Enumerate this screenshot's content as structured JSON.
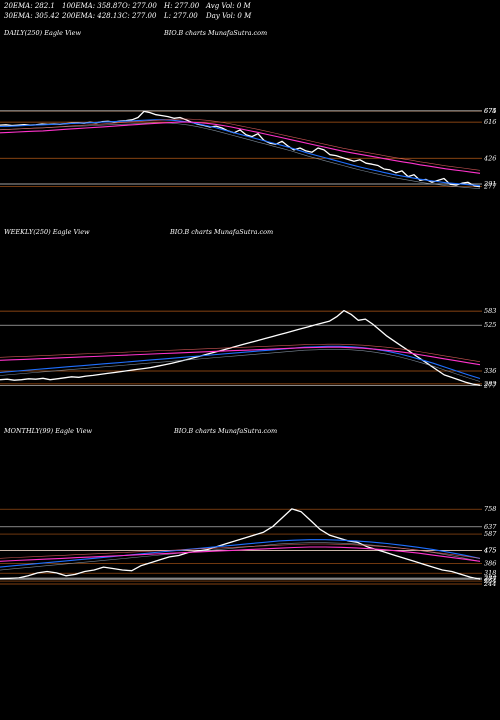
{
  "header": {
    "row1": [
      "20EMA: 282.1",
      "100EMA: 358.87",
      "O: 277.00",
      "H: 277.00",
      "Avg Vol: 0  M"
    ],
    "row2": [
      "30EMA: 305.42",
      "200EMA: 428.13",
      "C: 277.00",
      "L: 277.00",
      "Day Vol: 0  M"
    ]
  },
  "panels": [
    {
      "label": "DAILY(250) Eagle  View",
      "watermark": "BIO.B charts MunafaSutra.com",
      "price_labels": [
        "674",
        "675",
        "616",
        "426",
        "291",
        "277"
      ]
    },
    {
      "label": "WEEKLY(250) Eagle  View",
      "watermark": "BIO.B charts MunafaSutra.com",
      "price_labels": [
        "583",
        "525",
        "336",
        "283",
        "277"
      ]
    },
    {
      "label": "MONTHLY(99) Eagle  View",
      "watermark": "BIO.B charts MunafaSutra.com",
      "price_labels": [
        "758",
        "637",
        "587",
        "475",
        "475",
        "386",
        "318",
        "284",
        "264",
        "244",
        "277"
      ]
    }
  ],
  "colors": {
    "background": "#000000",
    "price": "#ffffff",
    "ema_short": "#1e6fff",
    "ema_long": "#ff33cc",
    "ema_mid": "#ff6b6b",
    "band": "#d2691e",
    "band_light": "#ffffff"
  },
  "chart_data": [
    {
      "type": "line",
      "title": "DAILY(250) Eagle  View",
      "ylim": [
        270,
        690
      ],
      "series": [
        {
          "values": [
            600,
            602,
            598,
            600,
            603,
            600,
            602,
            606,
            604,
            606,
            605,
            608,
            610,
            612,
            610,
            615,
            612,
            618,
            620,
            616,
            622,
            624,
            628,
            640,
            672,
            666,
            655,
            650,
            645,
            636,
            640,
            628,
            615,
            605,
            598,
            590,
            595,
            585,
            570,
            560,
            575,
            550,
            540,
            555,
            520,
            505,
            500,
            515,
            490,
            470,
            480,
            465,
            458,
            480,
            470,
            445,
            440,
            430,
            420,
            410,
            418,
            400,
            395,
            388,
            370,
            365,
            350,
            360,
            330,
            340,
            310,
            315,
            300,
            310,
            320,
            290,
            285,
            295,
            300,
            282,
            277
          ]
        },
        {
          "values": [
            593,
            594,
            596,
            598,
            600,
            602,
            604,
            606,
            608,
            610,
            612,
            614,
            616,
            618,
            620,
            622,
            624,
            626,
            628,
            628,
            626,
            622,
            616,
            608,
            598,
            588,
            576,
            564,
            552,
            540,
            528,
            516,
            504,
            492,
            480,
            466,
            452,
            440,
            428,
            416,
            404,
            392,
            380,
            370,
            360,
            350,
            340,
            332,
            324,
            316,
            310,
            304,
            298,
            294,
            290,
            286,
            282
          ]
        },
        {
          "values": [
            560,
            562,
            564,
            566,
            568,
            570,
            573,
            576,
            579,
            582,
            585,
            588,
            591,
            594,
            597,
            600,
            603,
            606,
            609,
            612,
            614,
            616,
            616,
            614,
            610,
            605,
            598,
            590,
            581,
            572,
            563,
            553,
            543,
            533,
            523,
            513,
            503,
            493,
            483,
            473,
            463,
            455,
            447,
            439,
            431,
            423,
            415,
            407,
            400,
            392,
            385,
            378,
            371,
            365,
            359,
            353,
            347
          ]
        }
      ]
    },
    {
      "type": "line",
      "title": "WEEKLY(250) Eagle  View",
      "ylim": [
        270,
        600
      ],
      "series": [
        {
          "values": [
            300,
            302,
            298,
            300,
            304,
            302,
            306,
            300,
            304,
            308,
            312,
            310,
            315,
            318,
            322,
            326,
            330,
            334,
            338,
            342,
            346,
            350,
            356,
            362,
            368,
            375,
            382,
            390,
            398,
            406,
            414,
            422,
            430,
            438,
            446,
            454,
            462,
            470,
            478,
            486,
            494,
            502,
            510,
            518,
            526,
            534,
            542,
            560,
            585,
            570,
            545,
            550,
            530,
            505,
            480,
            460,
            440,
            420,
            400,
            380,
            360,
            340,
            320,
            310,
            300,
            290,
            282,
            277
          ]
        },
        {
          "values": [
            330,
            334,
            338,
            342,
            346,
            350,
            354,
            358,
            362,
            366,
            370,
            374,
            378,
            382,
            386,
            390,
            394,
            398,
            402,
            406,
            410,
            414,
            418,
            422,
            426,
            430,
            434,
            436,
            438,
            438,
            436,
            432,
            426,
            418,
            408,
            396,
            382,
            368,
            352,
            336,
            320,
            305
          ]
        },
        {
          "values": [
            380,
            382,
            384,
            386,
            388,
            390,
            392,
            394,
            396,
            398,
            400,
            402,
            404,
            406,
            408,
            410,
            412,
            414,
            416,
            418,
            420,
            422,
            424,
            426,
            428,
            430,
            432,
            433,
            434,
            434,
            432,
            430,
            426,
            422,
            416,
            410,
            402,
            394,
            386,
            378,
            370,
            362
          ]
        }
      ]
    },
    {
      "type": "line",
      "title": "MONTHLY(99) Eagle  View",
      "ylim": [
        230,
        780
      ],
      "series": [
        {
          "values": [
            280,
            282,
            286,
            300,
            320,
            330,
            320,
            300,
            310,
            330,
            340,
            360,
            350,
            340,
            335,
            370,
            390,
            410,
            430,
            440,
            460,
            470,
            480,
            500,
            520,
            540,
            560,
            580,
            600,
            640,
            700,
            760,
            740,
            680,
            620,
            580,
            560,
            540,
            530,
            500,
            480,
            460,
            440,
            420,
            400,
            380,
            360,
            340,
            330,
            310,
            290,
            277
          ]
        },
        {
          "values": [
            360,
            370,
            380,
            390,
            400,
            410,
            420,
            430,
            440,
            450,
            460,
            470,
            480,
            490,
            500,
            510,
            520,
            530,
            540,
            545,
            548,
            548,
            545,
            540,
            532,
            522,
            510,
            496,
            480,
            462,
            442,
            420
          ]
        },
        {
          "values": [
            400,
            405,
            410,
            415,
            420,
            425,
            430,
            435,
            440,
            445,
            450,
            455,
            460,
            465,
            470,
            475,
            480,
            485,
            490,
            495,
            498,
            498,
            496,
            492,
            486,
            478,
            468,
            456,
            442,
            428,
            414,
            400
          ]
        }
      ]
    }
  ]
}
